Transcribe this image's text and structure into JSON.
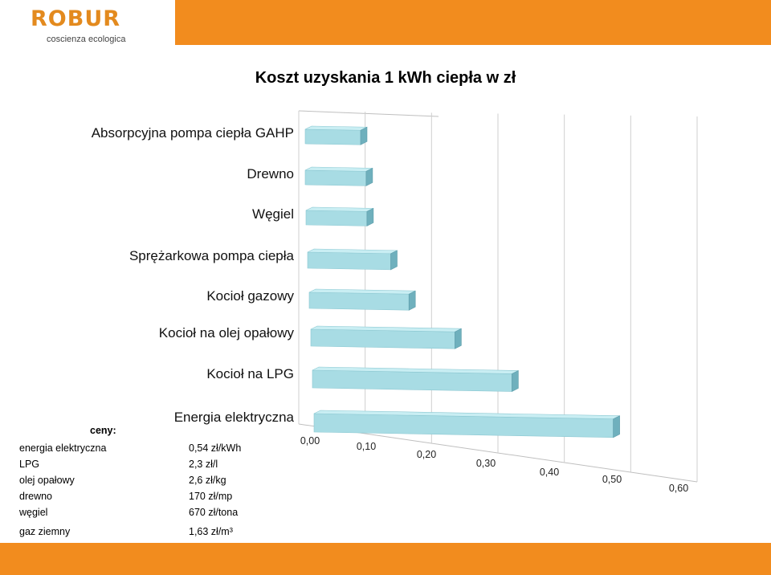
{
  "logo": {
    "word": "ROBUR",
    "tagline": "coscienza ecologica"
  },
  "colors": {
    "accent": "#f28c1e",
    "bar_front": "#a8dce4",
    "bar_top": "#c9eef3",
    "bar_side": "#6fb0bd"
  },
  "chart_data": {
    "type": "bar",
    "orientation": "horizontal",
    "title": "Koszt uzyskania 1 kWh ciepła w zł",
    "categories": [
      "Absorpcyjna pompa ciepła GAHP",
      "Drewno",
      "Węgiel",
      "Sprężarkowa pompa ciepła",
      "Kocioł gazowy",
      "Kocioł na olej opałowy",
      "Kocioł na LPG",
      "Energia elektryczna"
    ],
    "values": [
      0.1,
      0.11,
      0.11,
      0.15,
      0.18,
      0.26,
      0.36,
      0.54
    ],
    "xlim": [
      0,
      0.6
    ],
    "xticks": [
      "0,00",
      "0,10",
      "0,20",
      "0,30",
      "0,40",
      "0,50",
      "0,60"
    ],
    "xlabel": "",
    "ylabel": "",
    "grid": true,
    "style": "3d-perspective"
  },
  "prices": {
    "header": "ceny:",
    "rows": [
      {
        "name": "energia elektryczna",
        "value": "0,54 zł/kWh"
      },
      {
        "name": "LPG",
        "value": "2,3 zł/l"
      },
      {
        "name": "olej opałowy",
        "value": "2,6 zł/kg"
      },
      {
        "name": "drewno",
        "value": "170 zł/mp"
      },
      {
        "name": "węgiel",
        "value": "670 zł/tona"
      },
      {
        "name": "gaz ziemny",
        "value": "1,63 zł/m³"
      }
    ]
  }
}
